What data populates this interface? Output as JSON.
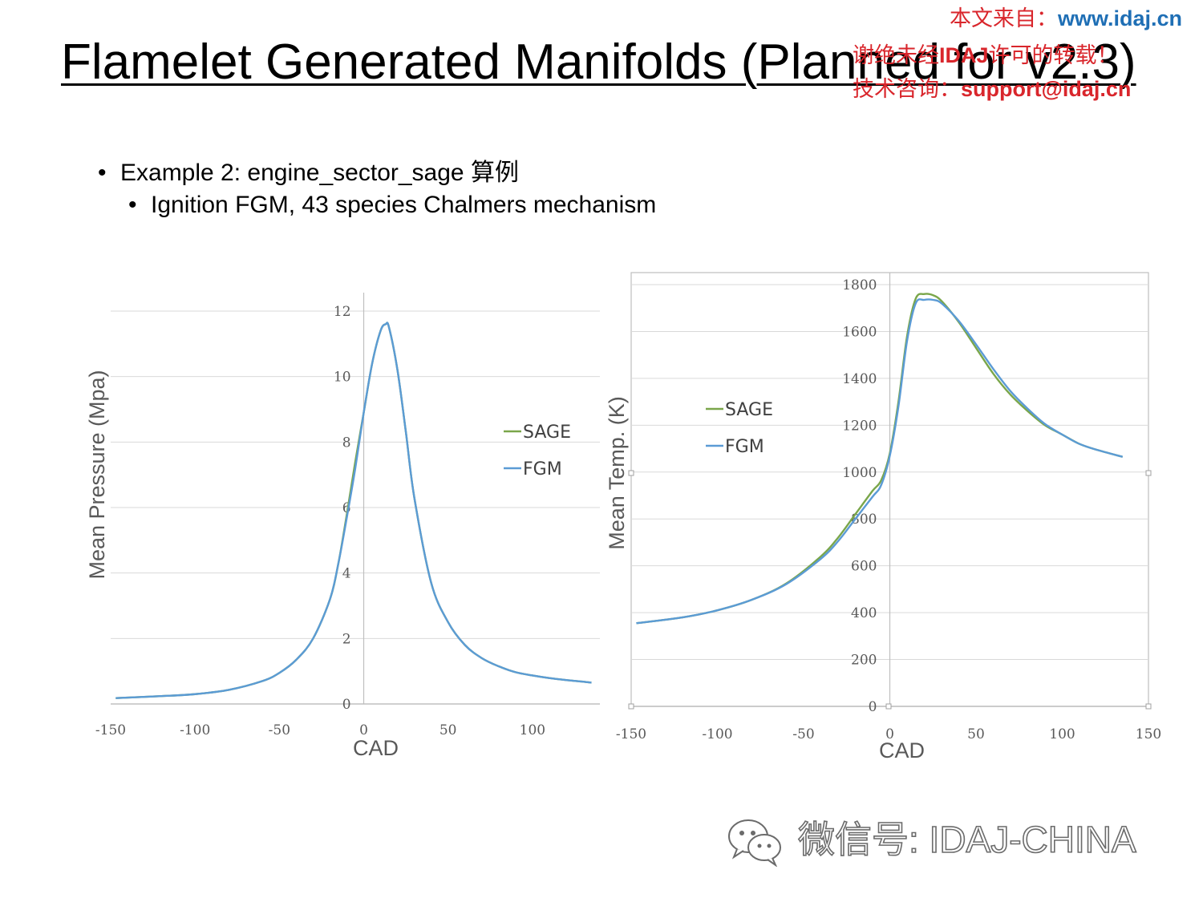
{
  "slide": {
    "title": "Flamelet Generated Manifolds (Planned for v2.3)",
    "bullets": [
      {
        "level": 1,
        "marker": "•",
        "text": "Example 2: engine_sector_sage 算例"
      },
      {
        "level": 2,
        "marker": "•",
        "text": "Ignition FGM, 43 species Chalmers mechanism"
      }
    ]
  },
  "watermark": {
    "line1_cn": "本文来自：",
    "line1_url": "www.idaj.cn",
    "line2_cn_a": "谢绝未经",
    "line2_brand": "IDAJ",
    "line2_cn_b": "许可的转载！",
    "line3_cn": "技术咨询：",
    "line3_email": "support@idaj.cn"
  },
  "footer": {
    "text": "微信号: IDAJ-CHINA",
    "icon": "wechat-icon"
  },
  "colors": {
    "sage": "#7aa64a",
    "fgm": "#5b9bd5",
    "grid": "#d9d9d9",
    "axis": "#bfbfbf",
    "watermark_red": "#d9262c",
    "watermark_blue": "#1f6fb5"
  },
  "chart_data": [
    {
      "type": "line",
      "xlabel": "CAD",
      "ylabel": "Mean Pressure (Mpa)",
      "xlim": [
        -150,
        140
      ],
      "ylim": [
        0,
        12
      ],
      "xticks": [
        -150,
        -100,
        -50,
        0,
        50,
        100
      ],
      "yticks": [
        0,
        2,
        4,
        6,
        8,
        10,
        12
      ],
      "grid": true,
      "legend": "right",
      "series": [
        {
          "name": "SAGE",
          "color": "#7aa64a",
          "x": [
            -147,
            -120,
            -100,
            -80,
            -60,
            -50,
            -40,
            -30,
            -20,
            -15,
            -10,
            -5,
            0,
            5,
            10,
            13,
            15,
            20,
            25,
            30,
            40,
            50,
            60,
            70,
            80,
            90,
            100,
            110,
            120,
            130,
            135
          ],
          "y": [
            0.18,
            0.24,
            0.3,
            0.43,
            0.7,
            0.95,
            1.35,
            2.0,
            3.2,
            4.3,
            5.8,
            7.4,
            8.9,
            10.4,
            11.4,
            11.6,
            11.5,
            10.2,
            8.3,
            6.3,
            3.7,
            2.5,
            1.8,
            1.4,
            1.15,
            0.97,
            0.87,
            0.79,
            0.73,
            0.68,
            0.65
          ]
        },
        {
          "name": "FGM",
          "color": "#5b9bd5",
          "x": [
            -147,
            -120,
            -100,
            -80,
            -60,
            -50,
            -40,
            -30,
            -20,
            -15,
            -10,
            -5,
            0,
            5,
            10,
            13,
            15,
            20,
            25,
            30,
            40,
            50,
            60,
            70,
            80,
            90,
            100,
            110,
            120,
            130,
            135
          ],
          "y": [
            0.18,
            0.24,
            0.3,
            0.43,
            0.7,
            0.95,
            1.35,
            2.0,
            3.2,
            4.3,
            5.7,
            7.2,
            8.9,
            10.4,
            11.4,
            11.6,
            11.5,
            10.2,
            8.3,
            6.3,
            3.7,
            2.5,
            1.8,
            1.4,
            1.15,
            0.97,
            0.87,
            0.79,
            0.73,
            0.68,
            0.65
          ]
        }
      ]
    },
    {
      "type": "line",
      "xlabel": "CAD",
      "ylabel": "Mean Temp. (K)",
      "xlim": [
        -150,
        150
      ],
      "ylim": [
        0,
        1800
      ],
      "xticks": [
        -150,
        -100,
        -50,
        0,
        50,
        100,
        150
      ],
      "yticks": [
        0,
        200,
        400,
        600,
        800,
        1000,
        1200,
        1400,
        1600,
        1800
      ],
      "grid": true,
      "legend": "left",
      "series": [
        {
          "name": "SAGE",
          "color": "#7aa64a",
          "x": [
            -147,
            -120,
            -100,
            -80,
            -60,
            -40,
            -30,
            -20,
            -10,
            -5,
            0,
            5,
            10,
            15,
            20,
            25,
            30,
            40,
            50,
            60,
            70,
            80,
            90,
            100,
            110,
            120,
            135
          ],
          "y": [
            355,
            380,
            410,
            455,
            525,
            640,
            720,
            820,
            920,
            965,
            1080,
            1300,
            1580,
            1740,
            1760,
            1755,
            1730,
            1640,
            1530,
            1420,
            1330,
            1260,
            1200,
            1160,
            1120,
            1095,
            1065
          ]
        },
        {
          "name": "FGM",
          "color": "#5b9bd5",
          "x": [
            -147,
            -120,
            -100,
            -80,
            -60,
            -40,
            -30,
            -20,
            -10,
            -5,
            0,
            5,
            10,
            15,
            20,
            25,
            30,
            40,
            50,
            60,
            70,
            80,
            90,
            100,
            110,
            120,
            135
          ],
          "y": [
            355,
            380,
            410,
            455,
            522,
            630,
            705,
            800,
            895,
            945,
            1070,
            1280,
            1560,
            1720,
            1735,
            1735,
            1720,
            1645,
            1545,
            1440,
            1345,
            1270,
            1205,
            1160,
            1120,
            1095,
            1065
          ]
        }
      ]
    }
  ]
}
